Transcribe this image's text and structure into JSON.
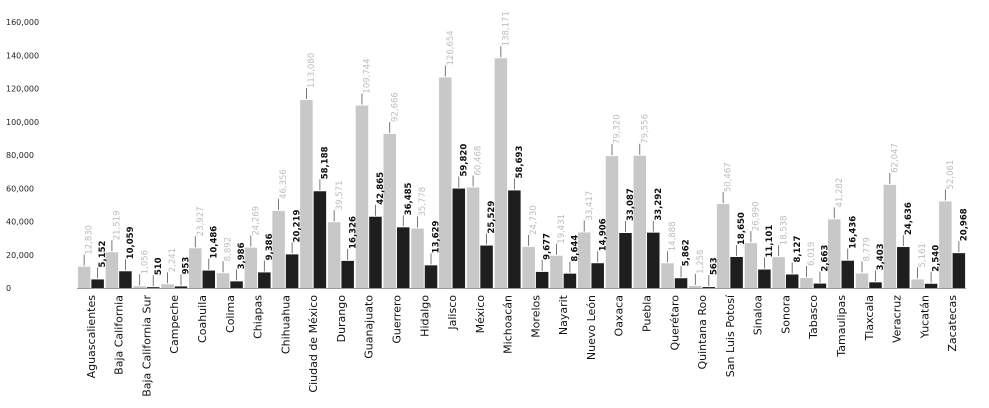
{
  "chart_data": {
    "type": "bar",
    "title": "",
    "xlabel": "",
    "ylabel": "",
    "ylim": [
      0,
      160000
    ],
    "yticks": [
      0,
      20000,
      40000,
      60000,
      80000,
      100000,
      120000,
      140000,
      160000
    ],
    "ytick_labels": [
      "0",
      "20,000",
      "40,000",
      "60,000",
      "80,000",
      "100,000",
      "120,000",
      "140,000",
      "160,000"
    ],
    "grid": false,
    "legend": "none",
    "colors": {
      "series_a": "#c8c8c8",
      "series_b": "#1e1e1e",
      "leader": "#555555"
    },
    "categories": [
      "Aguascalientes",
      "Baja California",
      "Baja California Sur",
      "Campeche",
      "Coahuila",
      "Colima",
      "Chiapas",
      "Chihuahua",
      "Ciudad de México",
      "Durango",
      "Guanajuato",
      "Guerrero",
      "Hidalgo",
      "Jalisco",
      "México",
      "Michoacán",
      "Morelos",
      "Nayarit",
      "Nuevo León",
      "Oaxaca",
      "Puebla",
      "Querétaro",
      "Quintana Roo",
      "San Luis Potosí",
      "Sinaloa",
      "Sonora",
      "Tabasco",
      "Tamaulipas",
      "Tlaxcala",
      "Veracruz",
      "Yucatán",
      "Zacatecas"
    ],
    "series": [
      {
        "values": [
          12830,
          21519,
          1056,
          2241,
          23927,
          8892,
          24269,
          46356,
          113080,
          39571,
          109744,
          92666,
          35778,
          126654,
          60468,
          138171,
          24730,
          19431,
          33417,
          79320,
          79556,
          14888,
          1258,
          50467,
          26990,
          18538,
          6019,
          41282,
          8779,
          62047,
          5161,
          52061
        ],
        "labels": [
          "12,830",
          "21,519",
          "1,056",
          "2,241",
          "23,927",
          "8,892",
          "24,269",
          "46,356",
          "113,080",
          "39,571",
          "109,744",
          "92,666",
          "35,778",
          "126,654",
          "60,468",
          "138,171",
          "24,730",
          "19,431",
          "33,417",
          "79,320",
          "79,556",
          "14,888",
          "1,258",
          "50,467",
          "26,990",
          "18,538",
          "6,019",
          "41,282",
          "8,779",
          "62,047",
          "5,161",
          "52,061"
        ]
      },
      {
        "values": [
          5152,
          10059,
          510,
          953,
          10486,
          3986,
          9386,
          20219,
          58188,
          16326,
          42865,
          36485,
          13629,
          59820,
          25529,
          58693,
          9677,
          8644,
          14906,
          33087,
          33292,
          5862,
          563,
          18650,
          11101,
          8127,
          2663,
          16436,
          3403,
          24636,
          2540,
          20968
        ],
        "labels": [
          "5,152",
          "10,059",
          "510",
          "953",
          "10,486",
          "3,986",
          "9,386",
          "20,219",
          "58,188",
          "16,326",
          "42,865",
          "36,485",
          "13,629",
          "59,820",
          "25,529",
          "58,693",
          "9,677",
          "8,644",
          "14,906",
          "33,087",
          "33,292",
          "5,862",
          "563",
          "18,650",
          "11,101",
          "8,127",
          "2,663",
          "16,436",
          "3,403",
          "24,636",
          "2,540",
          "20,968"
        ]
      }
    ]
  }
}
